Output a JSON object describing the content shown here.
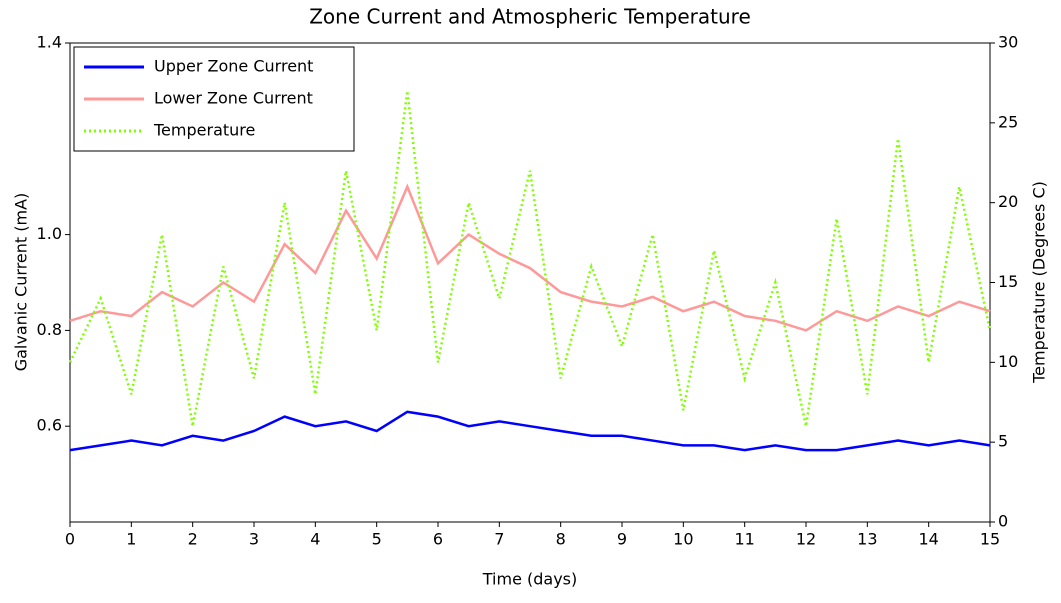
{
  "chart_data": {
    "type": "line",
    "title": "Zone Current and Atmospheric Temperature",
    "x_label": "Time (days)",
    "y_label": "Galvanic Current (mA)",
    "y2_label": "Temperature (Degrees C)",
    "x": [
      0,
      0.5,
      1,
      1.5,
      2,
      2.5,
      3,
      3.5,
      4,
      4.5,
      5,
      5.5,
      6,
      6.5,
      7,
      7.5,
      8,
      8.5,
      9,
      9.5,
      10,
      10.5,
      11,
      11.5,
      12,
      12.5,
      13,
      13.5,
      14,
      14.5,
      15
    ],
    "xlim": [
      0,
      15
    ],
    "xticks": [
      0,
      1,
      2,
      3,
      4,
      5,
      6,
      7,
      8,
      9,
      10,
      11,
      12,
      13,
      14,
      15
    ],
    "ylim": [
      0.4,
      1.4
    ],
    "yticks": [
      0.6,
      0.8,
      {
        "value": 1.0,
        "label": "1.0"
      },
      1.4
    ],
    "y2lim": [
      0,
      30
    ],
    "y2ticks": [
      0,
      5,
      10,
      15,
      20,
      25,
      30
    ],
    "legend": "upper left",
    "series": [
      {
        "name": "Upper Zone Current",
        "color": "#0000ff",
        "values": [
          0.55,
          0.56,
          0.57,
          0.56,
          0.58,
          0.57,
          0.59,
          0.62,
          0.6,
          0.61,
          0.59,
          0.63,
          0.62,
          0.6,
          0.61,
          0.6,
          0.59,
          0.58,
          0.58,
          0.57,
          0.56,
          0.56,
          0.55,
          0.56,
          0.55,
          0.55,
          0.56,
          0.57,
          0.56,
          0.57,
          0.56
        ]
      },
      {
        "name": "Lower Zone Current",
        "color": "#ff9999",
        "values": [
          0.82,
          0.84,
          0.83,
          0.88,
          0.85,
          0.9,
          0.86,
          0.98,
          0.92,
          1.05,
          0.95,
          1.1,
          0.94,
          1.0,
          0.96,
          0.93,
          0.88,
          0.86,
          0.85,
          0.87,
          0.84,
          0.86,
          0.83,
          0.82,
          0.8,
          0.84,
          0.82,
          0.85,
          0.83,
          0.86,
          0.84
        ]
      },
      {
        "name": "Temperature",
        "color": "#7fff00",
        "dashed": true,
        "axis": "y2",
        "values": [
          10,
          14,
          8,
          18,
          6,
          16,
          9,
          20,
          8,
          22,
          12,
          27,
          10,
          20,
          14,
          22,
          9,
          16,
          11,
          18,
          7,
          17,
          9,
          15,
          6,
          19,
          8,
          24,
          10,
          21,
          12
        ]
      }
    ]
  }
}
